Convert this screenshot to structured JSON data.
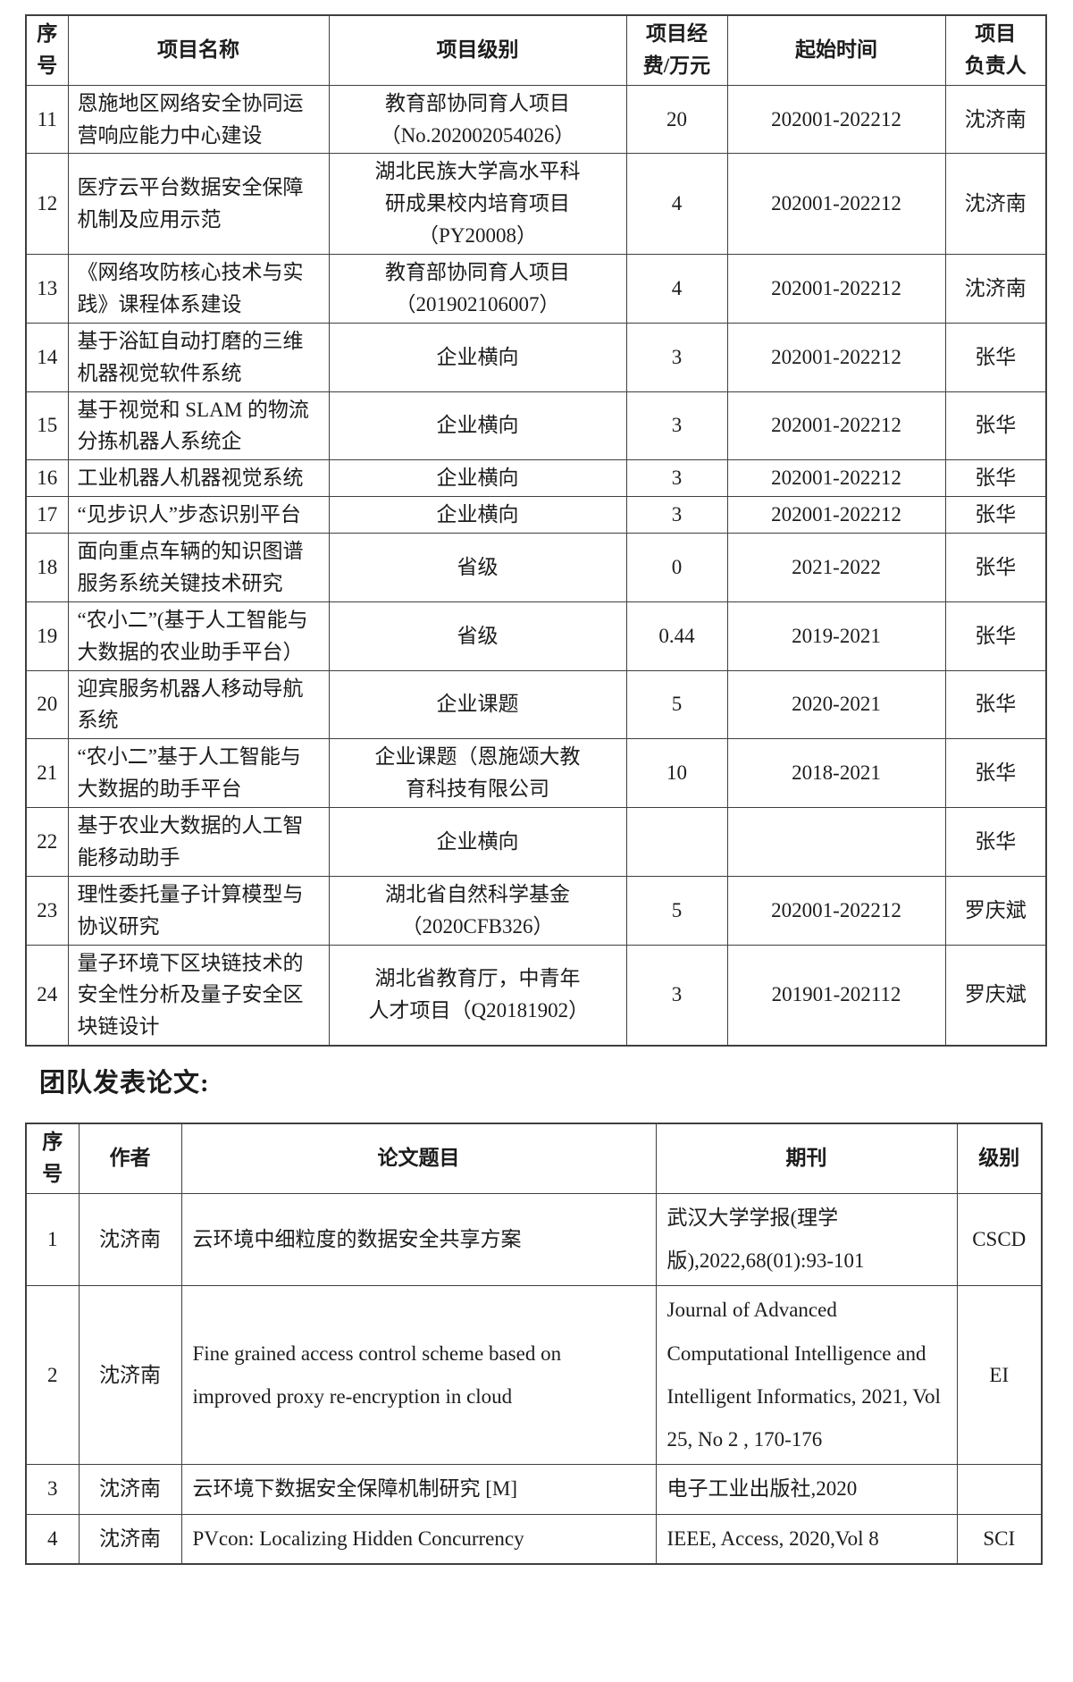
{
  "document": {
    "papers_heading": "团队发表论文:"
  },
  "colors": {
    "background": "#ffffff",
    "text": "#1c1c1c",
    "table_border": "#3f3f3f"
  },
  "projects_table": {
    "headers": [
      "序\n号",
      "项目名称",
      "项目级别",
      "项目经\n费/万元",
      "起始时间",
      "项目\n负责人"
    ],
    "rows": [
      {
        "no": "11",
        "name": "恩施地区网络安全协同运营响应能力中心建设",
        "level": "教育部协同育人项目（No.202002054026）",
        "fund": "20",
        "period": "202001-202212",
        "leader": "沈济南"
      },
      {
        "no": "12",
        "name": "医疗云平台数据安全保障机制及应用示范",
        "level": "湖北民族大学高水平科研成果校内培育项目（PY20008）",
        "fund": "4",
        "period": "202001-202212",
        "leader": "沈济南"
      },
      {
        "no": "13",
        "name": "《网络攻防核心技术与实践》课程体系建设",
        "level": "教育部协同育人项目（201902106007）",
        "fund": "4",
        "period": "202001-202212",
        "leader": "沈济南"
      },
      {
        "no": "14",
        "name": "基于浴缸自动打磨的三维机器视觉软件系统",
        "level": "企业横向",
        "fund": "3",
        "period": "202001-202212",
        "leader": "张华"
      },
      {
        "no": "15",
        "name": "基于视觉和 SLAM 的物流分拣机器人系统企",
        "level": "企业横向",
        "fund": "3",
        "period": "202001-202212",
        "leader": "张华"
      },
      {
        "no": "16",
        "name": "工业机器人机器视觉系统",
        "level": "企业横向",
        "fund": "3",
        "period": "202001-202212",
        "leader": "张华"
      },
      {
        "no": "17",
        "name": "“见步识人”步态识别平台",
        "level": "企业横向",
        "fund": "3",
        "period": "202001-202212",
        "leader": "张华"
      },
      {
        "no": "18",
        "name": "面向重点车辆的知识图谱服务系统关键技术研究",
        "level": "省级",
        "fund": "0",
        "period": "2021-2022",
        "leader": "张华"
      },
      {
        "no": "19",
        "name": "“农小二”(基于人工智能与大数据的农业助手平台）",
        "level": "省级",
        "fund": "0.44",
        "period": "2019-2021",
        "leader": "张华"
      },
      {
        "no": "20",
        "name": "迎宾服务机器人移动导航系统",
        "level": "企业课题",
        "fund": "5",
        "period": "2020-2021",
        "leader": "张华"
      },
      {
        "no": "21",
        "name": "“农小二”基于人工智能与大数据的助手平台",
        "level": "企业课题（恩施颂大教育科技有限公司",
        "fund": "10",
        "period": "2018-2021",
        "leader": "张华"
      },
      {
        "no": "22",
        "name": "基于农业大数据的人工智能移动助手",
        "level": "企业横向",
        "fund": "",
        "period": "",
        "leader": "张华"
      },
      {
        "no": "23",
        "name": "理性委托量子计算模型与协议研究",
        "level": "湖北省自然科学基金（2020CFB326）",
        "fund": "5",
        "period": "202001-202212",
        "leader": "罗庆斌"
      },
      {
        "no": "24",
        "name": "量子环境下区块链技术的安全性分析及量子安全区块链设计",
        "level": "湖北省教育厅，中青年人才项目（Q20181902）",
        "fund": "3",
        "period": "201901-202112",
        "leader": "罗庆斌"
      }
    ]
  },
  "papers_table": {
    "headers": [
      "序\n号",
      "作者",
      "论文题目",
      "期刊",
      "级别"
    ],
    "rows": [
      {
        "no": "1",
        "author": "沈济南",
        "title": "云环境中细粒度的数据安全共享方案",
        "journal": "武汉大学学报(理学版),2022,68(01):93-101",
        "grade": "CSCD"
      },
      {
        "no": "2",
        "author": "沈济南",
        "title": "Fine grained access control scheme based on improved proxy re-encryption in cloud",
        "journal": "Journal of Advanced Computational Intelligence and Intelligent Informatics, 2021, Vol 25, No 2 , 170-176",
        "grade": "EI"
      },
      {
        "no": "3",
        "author": "沈济南",
        "title": "云环境下数据安全保障机制研究 [M]",
        "journal": "电子工业出版社,2020",
        "grade": ""
      },
      {
        "no": "4",
        "author": "沈济南",
        "title": "PVcon: Localizing Hidden Concurrency",
        "journal": "IEEE, Access, 2020,Vol 8",
        "grade": "SCI"
      }
    ]
  }
}
